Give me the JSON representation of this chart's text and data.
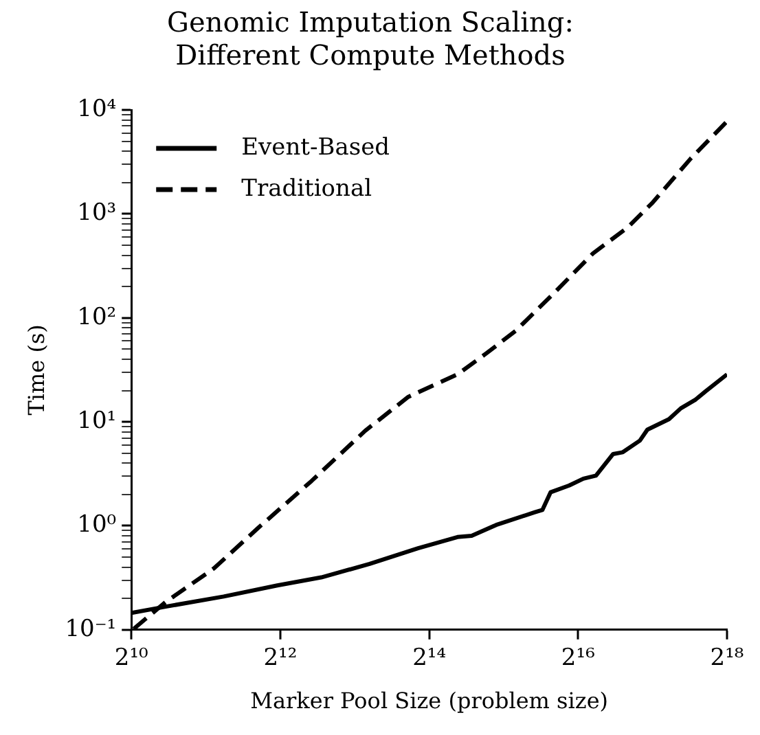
{
  "chart_data": {
    "type": "line",
    "title": "Genomic Imputation Scaling:\nDifferent Compute Methods",
    "xlabel": "Marker Pool Size (problem size)",
    "ylabel": "Time (s)",
    "log": "xy",
    "grid": false,
    "legend": "top left",
    "marker": "none",
    "xlim": [
      1024,
      262144
    ],
    "xticks": [
      {
        "value": 1024,
        "label": "2¹⁰"
      },
      {
        "value": 4096,
        "label": "2¹²"
      },
      {
        "value": 16384,
        "label": "2¹⁴"
      },
      {
        "value": 65536,
        "label": "2¹⁶"
      },
      {
        "value": 262144,
        "label": "2¹⁸"
      }
    ],
    "ylim": [
      0.1,
      10000
    ],
    "yticks": [
      {
        "value": 0.1,
        "label": "10⁻¹"
      },
      {
        "value": 0.2,
        "label": null
      },
      {
        "value": 0.3,
        "label": null
      },
      {
        "value": 0.4,
        "label": null
      },
      {
        "value": 0.5,
        "label": null
      },
      {
        "value": 0.6,
        "label": null
      },
      {
        "value": 0.7,
        "label": null
      },
      {
        "value": 0.8,
        "label": null
      },
      {
        "value": 0.9,
        "label": null
      },
      {
        "value": 1,
        "label": "10⁰"
      },
      {
        "value": 2,
        "label": null
      },
      {
        "value": 3,
        "label": null
      },
      {
        "value": 4,
        "label": null
      },
      {
        "value": 5,
        "label": null
      },
      {
        "value": 6,
        "label": null
      },
      {
        "value": 7,
        "label": null
      },
      {
        "value": 8,
        "label": null
      },
      {
        "value": 9,
        "label": null
      },
      {
        "value": 10,
        "label": "10¹"
      },
      {
        "value": 20,
        "label": null
      },
      {
        "value": 30,
        "label": null
      },
      {
        "value": 40,
        "label": null
      },
      {
        "value": 50,
        "label": null
      },
      {
        "value": 60,
        "label": null
      },
      {
        "value": 70,
        "label": null
      },
      {
        "value": 80,
        "label": null
      },
      {
        "value": 90,
        "label": null
      },
      {
        "value": 100,
        "label": "10²"
      },
      {
        "value": 200,
        "label": null
      },
      {
        "value": 300,
        "label": null
      },
      {
        "value": 400,
        "label": null
      },
      {
        "value": 500,
        "label": null
      },
      {
        "value": 600,
        "label": null
      },
      {
        "value": 700,
        "label": null
      },
      {
        "value": 800,
        "label": null
      },
      {
        "value": 900,
        "label": null
      },
      {
        "value": 1000,
        "label": "10³"
      },
      {
        "value": 2000,
        "label": null
      },
      {
        "value": 3000,
        "label": null
      },
      {
        "value": 4000,
        "label": null
      },
      {
        "value": 5000,
        "label": null
      },
      {
        "value": 6000,
        "label": null
      },
      {
        "value": 7000,
        "label": null
      },
      {
        "value": 8000,
        "label": null
      },
      {
        "value": 9000,
        "label": null
      },
      {
        "value": 10000,
        "label": "10⁴"
      }
    ],
    "series": [
      {
        "name": "Event-Based",
        "color": "#000000",
        "line_style": "solid",
        "x": [
          1024,
          1409,
          2419,
          3984,
          5997,
          9410,
          14766,
          21320,
          24320,
          30574,
          43840,
          46983,
          50708,
          60305,
          68795,
          77395,
          90775,
          99334,
          116500,
          124870,
          152660,
          170580,
          195900,
          214400,
          262144
        ],
        "values": [
          0.145,
          0.167,
          0.209,
          0.267,
          0.319,
          0.43,
          0.608,
          0.78,
          0.8,
          1.02,
          1.35,
          1.42,
          2.1,
          2.44,
          2.84,
          3.04,
          4.9,
          5.1,
          6.6,
          8.4,
          10.6,
          13.5,
          16.4,
          19.6,
          28.6
        ]
      },
      {
        "name": "Traditional",
        "color": "#000000",
        "line_style": "dashed",
        "x": [
          1046,
          1409,
          2210,
          3327,
          5480,
          9026,
          13490,
          21320,
          27940,
          36620,
          52500,
          75290,
          103550,
          130170,
          186660,
          262144
        ],
        "values": [
          0.102,
          0.185,
          0.39,
          0.95,
          2.7,
          8.2,
          17.4,
          28.6,
          45.7,
          75,
          174,
          417,
          735,
          1260,
          3390,
          7760
        ]
      }
    ]
  }
}
